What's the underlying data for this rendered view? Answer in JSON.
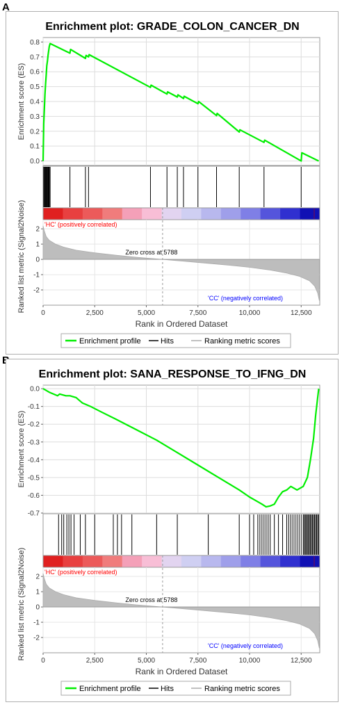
{
  "panels": [
    {
      "letter": "A",
      "chart_data": {
        "type": "line",
        "title": "Enrichment plot: GRADE_COLON_CANCER_DN",
        "xlabel": "Rank in Ordered Dataset",
        "ylabel_es": "Enrichment score (ES)",
        "ylabel_metric": "Ranked list metric (Signal2Noise)",
        "xlim": [
          0,
          13400
        ],
        "x_ticks": [
          0,
          2500,
          5000,
          7500,
          10000,
          12500
        ],
        "x_tick_labels": [
          "0",
          "2,500",
          "5,000",
          "7,500",
          "10,000",
          "12,500"
        ],
        "es_ylim": [
          -0.03,
          0.83
        ],
        "es_ticks": [
          0.0,
          0.1,
          0.2,
          0.3,
          0.4,
          0.5,
          0.6,
          0.7,
          0.8
        ],
        "es_tick_labels": [
          "0.0",
          "0.1",
          "0.2",
          "0.3",
          "0.4",
          "0.5",
          "0.6",
          "0.7",
          "0.8"
        ],
        "metric_ylim": [
          -3,
          2.6
        ],
        "metric_ticks": [
          2,
          1,
          0,
          -1,
          -2
        ],
        "metric_tick_labels": [
          "2",
          "1",
          "0",
          "-1",
          "-2"
        ],
        "es_curve": {
          "x": [
            0,
            30,
            60,
            90,
            120,
            150,
            180,
            210,
            240,
            270,
            300,
            340,
            1300,
            1330,
            2050,
            2080,
            2200,
            2230,
            5200,
            5230,
            6000,
            6030,
            6500,
            6530,
            6800,
            6830,
            7500,
            7530,
            8400,
            8430,
            9500,
            9530,
            10700,
            10730,
            12500,
            12530,
            13350
          ],
          "y": [
            0.0,
            0.25,
            0.35,
            0.45,
            0.52,
            0.58,
            0.64,
            0.67,
            0.71,
            0.74,
            0.77,
            0.79,
            0.725,
            0.75,
            0.69,
            0.71,
            0.7,
            0.715,
            0.495,
            0.51,
            0.45,
            0.465,
            0.43,
            0.445,
            0.42,
            0.435,
            0.385,
            0.4,
            0.305,
            0.32,
            0.195,
            0.21,
            0.125,
            0.14,
            0.0,
            0.055,
            0.0
          ]
        },
        "hits": [
          30,
          60,
          90,
          120,
          150,
          180,
          210,
          240,
          270,
          300,
          340,
          1300,
          2050,
          2200,
          5200,
          6000,
          6500,
          6800,
          7500,
          8400,
          9500,
          10700,
          12500
        ],
        "heatmap_colors": [
          "#e02020",
          "#e84040",
          "#ec5a5a",
          "#f07c7c",
          "#f4a0b8",
          "#f8bed6",
          "#e2d4f0",
          "#cfcff2",
          "#b8b8ee",
          "#9f9fea",
          "#7f7fe6",
          "#5555dc",
          "#3030d0",
          "#1010b4"
        ],
        "zero_cross_x": 5788,
        "zero_cross_label": "Zero cross at 5788",
        "pos_label": "'HC' (positively correlated)",
        "neg_label": "'CC' (negatively correlated)",
        "metric_profile": {
          "x": [
            0,
            50,
            150,
            300,
            600,
            1000,
            1600,
            2500,
            3500,
            4500,
            5788,
            7000,
            8000,
            9000,
            10000,
            11000,
            11800,
            12400,
            12900,
            13150,
            13300,
            13380
          ],
          "y": [
            2.2,
            1.9,
            1.5,
            1.25,
            1.0,
            0.8,
            0.6,
            0.43,
            0.28,
            0.14,
            0.0,
            -0.14,
            -0.26,
            -0.38,
            -0.52,
            -0.7,
            -0.9,
            -1.1,
            -1.4,
            -1.75,
            -2.2,
            -2.7
          ]
        },
        "legend": [
          "Enrichment profile",
          "Hits",
          "Ranking metric scores"
        ],
        "colors": {
          "profile": "#00ee00",
          "hit": "#000000",
          "metric": "#aaaaaa",
          "pos": "#ff0000",
          "neg": "#0000ff",
          "frame": "#999999"
        }
      }
    },
    {
      "letter": "B",
      "chart_data": {
        "type": "line",
        "title": "Enrichment plot: SANA_RESPONSE_TO_IFNG_DN",
        "xlabel": "Rank in Ordered Dataset",
        "ylabel_es": "Enrichment score (ES)",
        "ylabel_metric": "Ranked list metric (Signal2Noise)",
        "xlim": [
          0,
          13400
        ],
        "x_ticks": [
          0,
          2500,
          5000,
          7500,
          10000,
          12500
        ],
        "x_tick_labels": [
          "0",
          "2,500",
          "5,000",
          "7,500",
          "10,000",
          "12,500"
        ],
        "es_ylim": [
          -0.7,
          0.02
        ],
        "es_ticks": [
          0.0,
          -0.1,
          -0.2,
          -0.3,
          -0.4,
          -0.5,
          -0.6,
          -0.7
        ],
        "es_tick_labels": [
          "0.0",
          "-0.1",
          "-0.2",
          "-0.3",
          "-0.4",
          "-0.5",
          "-0.6",
          "-0.7"
        ],
        "metric_ylim": [
          -3,
          2.6
        ],
        "metric_ticks": [
          2,
          1,
          0,
          -1,
          -2
        ],
        "metric_tick_labels": [
          "2",
          "1",
          "0",
          "-1",
          "-2"
        ],
        "es_curve": {
          "x": [
            0,
            300,
            700,
            800,
            1100,
            1300,
            1600,
            1900,
            2300,
            2800,
            3500,
            4500,
            5500,
            6500,
            7500,
            8500,
            9500,
            10000,
            10300,
            10600,
            10800,
            11000,
            11200,
            11400,
            11600,
            11800,
            12000,
            12300,
            12600,
            12800,
            12950,
            13100,
            13200,
            13300,
            13350
          ],
          "y": [
            0.0,
            -0.02,
            -0.04,
            -0.03,
            -0.04,
            -0.04,
            -0.05,
            -0.08,
            -0.1,
            -0.13,
            -0.17,
            -0.23,
            -0.29,
            -0.36,
            -0.43,
            -0.5,
            -0.57,
            -0.61,
            -0.63,
            -0.65,
            -0.665,
            -0.66,
            -0.65,
            -0.61,
            -0.58,
            -0.57,
            -0.55,
            -0.57,
            -0.55,
            -0.5,
            -0.4,
            -0.28,
            -0.15,
            -0.05,
            0.0
          ]
        },
        "hits": [
          750,
          900,
          1000,
          1150,
          1250,
          1350,
          1500,
          1800,
          2050,
          2500,
          3400,
          3600,
          3800,
          4300,
          5500,
          6500,
          8000,
          9500,
          10000,
          10200,
          10400,
          10500,
          10600,
          10700,
          10800,
          10900,
          11000,
          11200,
          11400,
          11600,
          11800,
          11900,
          12000,
          12100,
          12200,
          12300,
          12400,
          12500,
          12600,
          12650,
          12700,
          12750,
          12800,
          12850,
          12900,
          12950,
          13000,
          13050,
          13100,
          13150,
          13200,
          13250,
          13300,
          13350
        ],
        "heatmap_colors": [
          "#e02020",
          "#e84040",
          "#ec5a5a",
          "#f07c7c",
          "#f4a0b8",
          "#f8bed6",
          "#e2d4f0",
          "#cfcff2",
          "#b8b8ee",
          "#9f9fea",
          "#7f7fe6",
          "#5555dc",
          "#3030d0",
          "#1010b4"
        ],
        "zero_cross_x": 5788,
        "zero_cross_label": "Zero cross at 5788",
        "pos_label": "'HC' (positively correlated)",
        "neg_label": "'CC' (negatively correlated)",
        "metric_profile": {
          "x": [
            0,
            50,
            150,
            300,
            600,
            1000,
            1600,
            2500,
            3500,
            4500,
            5788,
            7000,
            8000,
            9000,
            10000,
            11000,
            11800,
            12400,
            12900,
            13150,
            13300,
            13380
          ],
          "y": [
            2.2,
            1.9,
            1.5,
            1.25,
            1.0,
            0.8,
            0.6,
            0.43,
            0.28,
            0.14,
            0.0,
            -0.14,
            -0.26,
            -0.38,
            -0.52,
            -0.7,
            -0.9,
            -1.1,
            -1.4,
            -1.75,
            -2.2,
            -2.7
          ]
        },
        "legend": [
          "Enrichment profile",
          "Hits",
          "Ranking metric scores"
        ],
        "colors": {
          "profile": "#00ee00",
          "hit": "#000000",
          "metric": "#aaaaaa",
          "pos": "#ff0000",
          "neg": "#0000ff",
          "frame": "#999999"
        }
      }
    }
  ]
}
